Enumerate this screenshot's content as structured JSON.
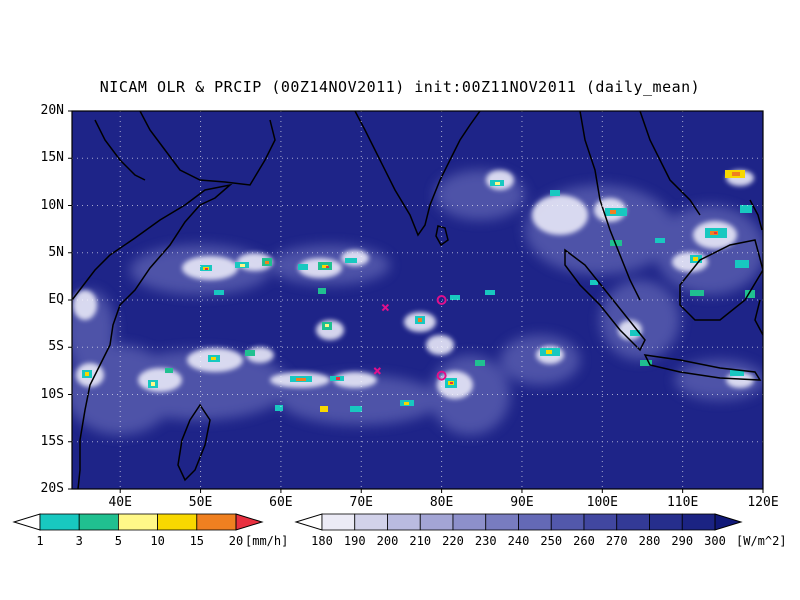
{
  "title": "NICAM OLR & PRCIP (00Z14NOV2011) init:00Z11NOV2011 (daily_mean)",
  "map": {
    "lat_labels": [
      "20N",
      "15N",
      "10N",
      "5N",
      "EQ",
      "5S",
      "10S",
      "15S",
      "20S"
    ],
    "lon_labels": [
      "40E",
      "50E",
      "60E",
      "70E",
      "80E",
      "90E",
      "100E",
      "110E",
      "120E"
    ],
    "lat_range": [
      -20,
      20
    ],
    "lon_range": [
      34,
      120
    ],
    "grid": "dotted",
    "background_olr_color": "#1e2488",
    "coastline_color": "#000000",
    "markers": [
      {
        "type": "x",
        "lon": 73,
        "lat": -0.8,
        "color": "#e0108c"
      },
      {
        "type": "x",
        "lon": 72,
        "lat": -7.5,
        "color": "#e0108c"
      },
      {
        "type": "o",
        "lon": 80,
        "lat": 0,
        "color": "#e0108c"
      },
      {
        "type": "o",
        "lon": 80,
        "lat": -8,
        "color": "#e0108c"
      }
    ]
  },
  "precip_colorbar": {
    "labels": [
      "1",
      "3",
      "5",
      "10",
      "15",
      "20"
    ],
    "unit": "[mm/h]",
    "colors": [
      "#ffffff",
      "#18c8c0",
      "#20c090",
      "#fff888",
      "#f8d800",
      "#f08020",
      "#e83040"
    ]
  },
  "olr_colorbar": {
    "labels": [
      "180",
      "190",
      "200",
      "210",
      "220",
      "230",
      "240",
      "250",
      "260",
      "270",
      "280",
      "290",
      "300"
    ],
    "unit": "[W/m^2]",
    "colors": [
      "#ffffff",
      "#ecebf6",
      "#d2d2ea",
      "#babbe0",
      "#a3a5d5",
      "#8d90cb",
      "#787cc0",
      "#6469b6",
      "#5258ab",
      "#4147a0",
      "#333a96",
      "#262e8c",
      "#1b2383",
      "#101878"
    ]
  }
}
